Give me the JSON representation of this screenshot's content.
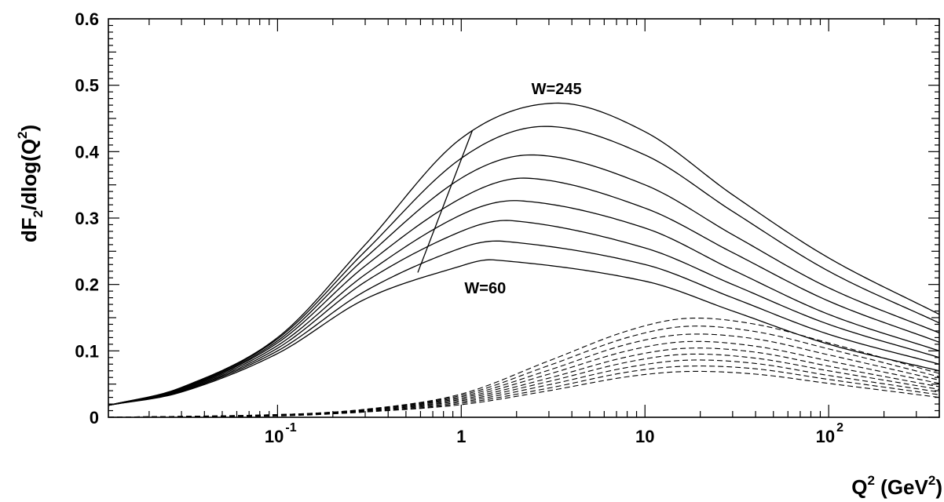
{
  "chart_data": {
    "type": "line",
    "title": "",
    "xscale": "log",
    "xlim": [
      0.012,
      400
    ],
    "ylim": [
      0,
      0.6
    ],
    "grid": false,
    "ylabel": "dF",
    "ylabel_sub": "2",
    "ylabel_rest": "/dlog(Q",
    "ylabel_sup": "2",
    "ylabel_end": ")",
    "xlabel": "Q",
    "xlabel_sup": "2",
    "xlabel_mid": " (GeV",
    "xlabel_sup2": "2",
    "xlabel_end": ")",
    "y_ticks": [
      {
        "value": 0,
        "label": "0"
      },
      {
        "value": 0.1,
        "label": "0.1"
      },
      {
        "value": 0.2,
        "label": "0.2"
      },
      {
        "value": 0.3,
        "label": "0.3"
      },
      {
        "value": 0.4,
        "label": "0.4"
      },
      {
        "value": 0.5,
        "label": "0.5"
      },
      {
        "value": 0.6,
        "label": "0.6"
      }
    ],
    "x_ticks": [
      {
        "value": 0.1,
        "base": "10",
        "exp": "-1"
      },
      {
        "value": 1,
        "base": "1",
        "exp": ""
      },
      {
        "value": 10,
        "base": "10",
        "exp": ""
      },
      {
        "value": 100,
        "base": "10",
        "exp": "2"
      }
    ],
    "annotations": [
      {
        "text": "W=245",
        "x": 3.3,
        "y": 0.495
      },
      {
        "text": "W=60",
        "x": 1.35,
        "y": 0.195
      }
    ],
    "solid_series": [
      {
        "x": [
          0.012,
          0.03,
          0.1,
          0.3,
          1.0,
          3.2,
          10,
          30,
          100,
          400
        ],
        "y": [
          0.018,
          0.045,
          0.12,
          0.26,
          0.42,
          0.473,
          0.43,
          0.335,
          0.24,
          0.155
        ]
      },
      {
        "x": [
          0.012,
          0.03,
          0.1,
          0.3,
          1.0,
          2.8,
          10,
          30,
          100,
          400
        ],
        "y": [
          0.018,
          0.044,
          0.118,
          0.25,
          0.39,
          0.438,
          0.395,
          0.31,
          0.22,
          0.142
        ]
      },
      {
        "x": [
          0.012,
          0.03,
          0.1,
          0.3,
          1.0,
          2.5,
          10,
          30,
          100,
          400
        ],
        "y": [
          0.018,
          0.043,
          0.115,
          0.24,
          0.36,
          0.395,
          0.35,
          0.275,
          0.195,
          0.127
        ]
      },
      {
        "x": [
          0.012,
          0.03,
          0.1,
          0.3,
          1.0,
          2.3,
          10,
          30,
          100,
          400
        ],
        "y": [
          0.018,
          0.042,
          0.112,
          0.228,
          0.33,
          0.36,
          0.315,
          0.248,
          0.175,
          0.113
        ]
      },
      {
        "x": [
          0.012,
          0.03,
          0.1,
          0.3,
          1.0,
          2.1,
          10,
          30,
          100,
          400
        ],
        "y": [
          0.018,
          0.041,
          0.108,
          0.215,
          0.305,
          0.326,
          0.285,
          0.222,
          0.155,
          0.1
        ]
      },
      {
        "x": [
          0.012,
          0.03,
          0.1,
          0.3,
          1.0,
          1.9,
          10,
          30,
          100,
          400
        ],
        "y": [
          0.018,
          0.04,
          0.104,
          0.204,
          0.28,
          0.296,
          0.255,
          0.2,
          0.14,
          0.09
        ]
      },
      {
        "x": [
          0.012,
          0.03,
          0.1,
          0.3,
          1.0,
          1.7,
          10,
          30,
          100,
          400
        ],
        "y": [
          0.018,
          0.039,
          0.1,
          0.19,
          0.255,
          0.265,
          0.23,
          0.18,
          0.125,
          0.08
        ]
      },
      {
        "x": [
          0.012,
          0.03,
          0.1,
          0.3,
          1.0,
          1.5,
          10,
          30,
          100,
          400
        ],
        "y": [
          0.018,
          0.038,
          0.096,
          0.178,
          0.228,
          0.237,
          0.205,
          0.16,
          0.11,
          0.07
        ]
      }
    ],
    "dashed_series": [
      {
        "x": [
          0.012,
          0.1,
          0.3,
          1,
          3,
          8,
          17,
          40,
          100,
          400
        ],
        "y": [
          0.0,
          0.004,
          0.012,
          0.035,
          0.085,
          0.13,
          0.149,
          0.14,
          0.112,
          0.066
        ]
      },
      {
        "x": [
          0.012,
          0.1,
          0.3,
          1,
          3,
          8,
          17,
          40,
          100,
          400
        ],
        "y": [
          0.0,
          0.004,
          0.012,
          0.033,
          0.078,
          0.12,
          0.137,
          0.129,
          0.103,
          0.061
        ]
      },
      {
        "x": [
          0.012,
          0.1,
          0.3,
          1,
          3,
          8,
          17,
          40,
          100,
          400
        ],
        "y": [
          0.0,
          0.004,
          0.011,
          0.031,
          0.071,
          0.11,
          0.125,
          0.118,
          0.094,
          0.056
        ]
      },
      {
        "x": [
          0.012,
          0.1,
          0.3,
          1,
          3,
          8,
          17,
          40,
          100,
          400
        ],
        "y": [
          0.0,
          0.003,
          0.011,
          0.029,
          0.065,
          0.1,
          0.114,
          0.107,
          0.085,
          0.051
        ]
      },
      {
        "x": [
          0.012,
          0.1,
          0.3,
          1,
          3,
          8,
          17,
          40,
          100,
          400
        ],
        "y": [
          0.0,
          0.003,
          0.01,
          0.027,
          0.059,
          0.091,
          0.104,
          0.098,
          0.077,
          0.046
        ]
      },
      {
        "x": [
          0.012,
          0.1,
          0.3,
          1,
          3,
          8,
          17,
          40,
          100,
          400
        ],
        "y": [
          0.0,
          0.003,
          0.01,
          0.025,
          0.054,
          0.083,
          0.095,
          0.089,
          0.07,
          0.042
        ]
      },
      {
        "x": [
          0.012,
          0.1,
          0.3,
          1,
          3,
          8,
          17,
          40,
          100,
          400
        ],
        "y": [
          0.0,
          0.003,
          0.009,
          0.023,
          0.049,
          0.075,
          0.086,
          0.081,
          0.063,
          0.038
        ]
      },
      {
        "x": [
          0.012,
          0.1,
          0.3,
          1,
          3,
          8,
          17,
          40,
          100,
          400
        ],
        "y": [
          0.0,
          0.003,
          0.008,
          0.021,
          0.044,
          0.068,
          0.077,
          0.073,
          0.057,
          0.034
        ]
      },
      {
        "x": [
          0.012,
          0.1,
          0.3,
          1,
          3,
          8,
          17,
          40,
          100,
          400
        ],
        "y": [
          0.0,
          0.002,
          0.008,
          0.019,
          0.04,
          0.061,
          0.069,
          0.065,
          0.051,
          0.03
        ]
      }
    ],
    "cut_line": {
      "x": [
        0.58,
        1.15
      ],
      "y": [
        0.218,
        0.432
      ]
    }
  }
}
